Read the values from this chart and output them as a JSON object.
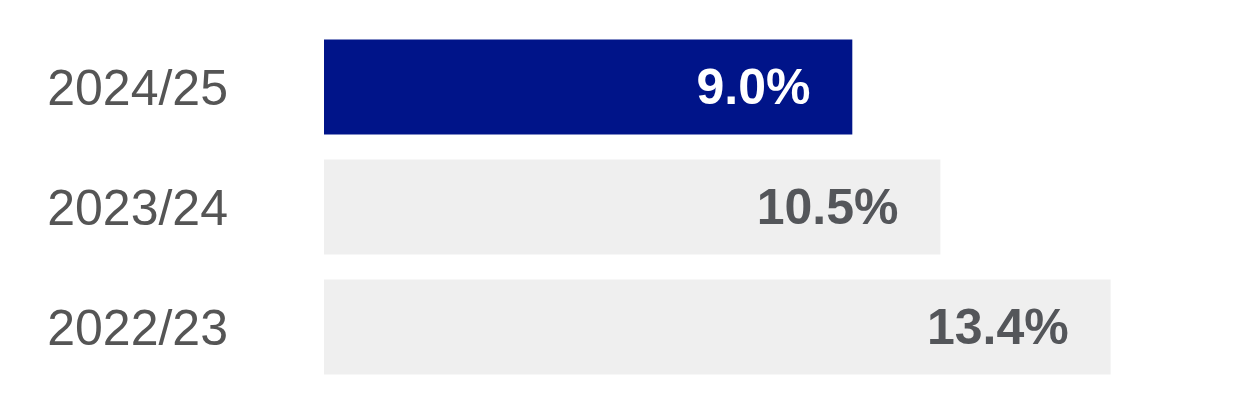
{
  "chart_data": {
    "type": "bar",
    "orientation": "horizontal",
    "categories": [
      "2024/25",
      "2023/24",
      "2022/23"
    ],
    "values": [
      9.0,
      10.5,
      13.4
    ],
    "colors": [
      "#001489",
      "#efefef",
      "#efefef"
    ],
    "value_labels": [
      "9.0%",
      "10.5%",
      "13.4%"
    ]
  }
}
